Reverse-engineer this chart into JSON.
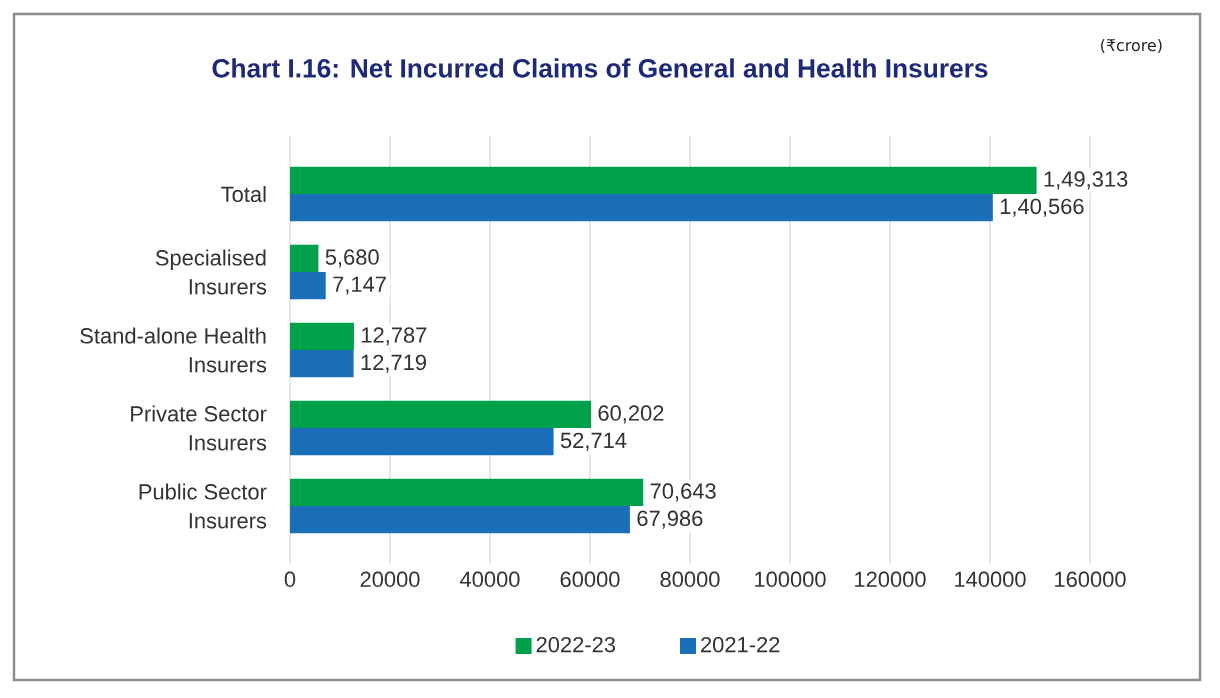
{
  "chart_data": {
    "type": "bar",
    "orientation": "horizontal",
    "title": "Chart I.16: Net Incurred Claims of General and Health Insurers",
    "annotations": [
      "(₹crore)"
    ],
    "categories": [
      "Total",
      "Specialised Insurers",
      "Stand-alone Health Insurers",
      "Private Sector Insurers",
      "Public Sector Insurers"
    ],
    "series": [
      {
        "name": "2022-23",
        "color": "#00a14b",
        "values": [
          149313,
          5680,
          12787,
          60202,
          70643
        ],
        "value_labels": [
          "1,49,313",
          "5,680",
          "12,787",
          "60,202",
          "70,643"
        ]
      },
      {
        "name": "2021-22",
        "color": "#1b6fb8",
        "values": [
          140566,
          7147,
          12719,
          52714,
          67986
        ],
        "value_labels": [
          "1,40,566",
          "7,147",
          "12,719",
          "52,714",
          "67,986"
        ]
      }
    ],
    "xlim": [
      0,
      160000
    ],
    "xticks": [
      0,
      20000,
      40000,
      60000,
      80000,
      100000,
      120000,
      140000,
      160000
    ],
    "grid": "x",
    "legend": "bottom"
  }
}
